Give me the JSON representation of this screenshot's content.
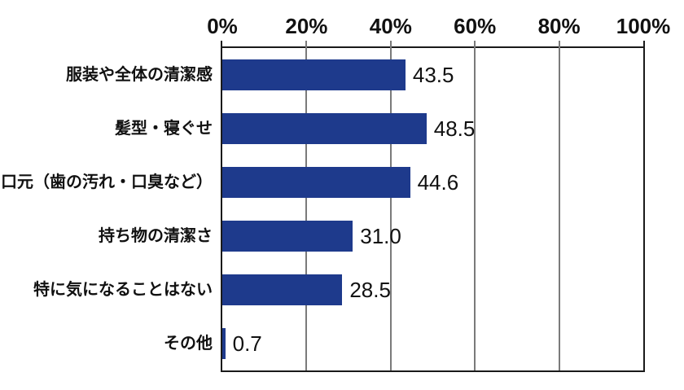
{
  "colors": {
    "bar": "#1e3a8c",
    "gridline": "#7a7a7a",
    "plot_border": "#1a1a1a",
    "text": "#111111",
    "background": "#ffffff"
  },
  "chart_data": {
    "type": "bar",
    "orientation": "horizontal",
    "title": "",
    "xlabel": "",
    "ylabel": "",
    "categories": [
      "服装や全体の清潔感",
      "髪型・寝ぐせ",
      "口元（歯の汚れ・口臭など）",
      "持ち物の清潔さ",
      "特に気になることはない",
      "その他"
    ],
    "values": [
      43.5,
      48.5,
      44.6,
      31.0,
      28.5,
      0.7
    ],
    "value_labels": [
      "43.5",
      "48.5",
      "44.6",
      "31.0",
      "28.5",
      "0.7"
    ],
    "x_tick_labels": [
      "0%",
      "20%",
      "40%",
      "60%",
      "80%",
      "100%"
    ],
    "x_tick_positions": [
      0,
      20,
      40,
      60,
      80,
      100
    ],
    "xlim": [
      0,
      100
    ],
    "grid": "vertical gridlines at 20% intervals, ticks extend above top axis",
    "legend": "none",
    "bar_color": "#1e3a8c"
  }
}
